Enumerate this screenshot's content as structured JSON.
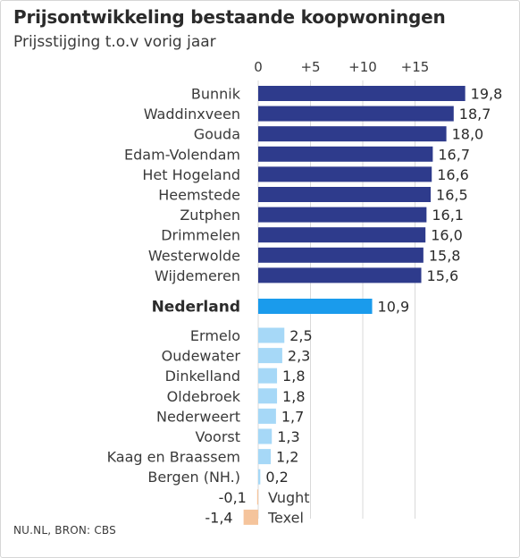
{
  "header": {
    "title": "Prijsontwikkeling bestaande koopwoningen",
    "subtitle": "Prijsstijging t.o.v vorig jaar"
  },
  "footer": {
    "source": "NU.NL, BRON: CBS"
  },
  "chart_data": {
    "type": "bar",
    "orientation": "horizontal",
    "title": "Prijsontwikkeling bestaande koopwoningen",
    "subtitle": "Prijsstijging t.o.v vorig jaar",
    "xticks": [
      {
        "value": 0,
        "label": "0"
      },
      {
        "value": 5,
        "label": "+5"
      },
      {
        "value": 10,
        "label": "+10"
      },
      {
        "value": 15,
        "label": "+15"
      }
    ],
    "xlim": [
      -1.4,
      19.8
    ],
    "grid": true,
    "groups": [
      {
        "name": "top",
        "color": "#2e3b8c",
        "items": [
          {
            "label": "Bunnik",
            "value": 19.8,
            "value_label": "19,8"
          },
          {
            "label": "Waddinxveen",
            "value": 18.7,
            "value_label": "18,7"
          },
          {
            "label": "Gouda",
            "value": 18.0,
            "value_label": "18,0"
          },
          {
            "label": "Edam-Volendam",
            "value": 16.7,
            "value_label": "16,7"
          },
          {
            "label": "Het Hogeland",
            "value": 16.6,
            "value_label": "16,6"
          },
          {
            "label": "Heemstede",
            "value": 16.5,
            "value_label": "16,5"
          },
          {
            "label": "Zutphen",
            "value": 16.1,
            "value_label": "16,1"
          },
          {
            "label": "Drimmelen",
            "value": 16.0,
            "value_label": "16,0"
          },
          {
            "label": "Westerwolde",
            "value": 15.8,
            "value_label": "15,8"
          },
          {
            "label": "Wijdemeren",
            "value": 15.6,
            "value_label": "15,6"
          }
        ]
      },
      {
        "name": "national",
        "color": "#1a9bec",
        "bold": true,
        "items": [
          {
            "label": "Nederland",
            "value": 10.9,
            "value_label": "10,9"
          }
        ]
      },
      {
        "name": "bottom",
        "color": "#a6d8f7",
        "negative_color": "#f5c49c",
        "items": [
          {
            "label": "Ermelo",
            "value": 2.5,
            "value_label": "2,5"
          },
          {
            "label": "Oudewater",
            "value": 2.3,
            "value_label": "2,3"
          },
          {
            "label": "Dinkelland",
            "value": 1.8,
            "value_label": "1,8"
          },
          {
            "label": "Oldebroek",
            "value": 1.8,
            "value_label": "1,8"
          },
          {
            "label": "Nederweert",
            "value": 1.7,
            "value_label": "1,7"
          },
          {
            "label": "Voorst",
            "value": 1.3,
            "value_label": "1,3"
          },
          {
            "label": "Kaag en Braassem",
            "value": 1.2,
            "value_label": "1,2"
          },
          {
            "label": "Bergen (NH.)",
            "value": 0.2,
            "value_label": "0,2"
          },
          {
            "label": "Vught",
            "value": -0.1,
            "value_label": "-0,1"
          },
          {
            "label": "Texel",
            "value": -1.4,
            "value_label": "-1,4"
          }
        ]
      }
    ]
  }
}
